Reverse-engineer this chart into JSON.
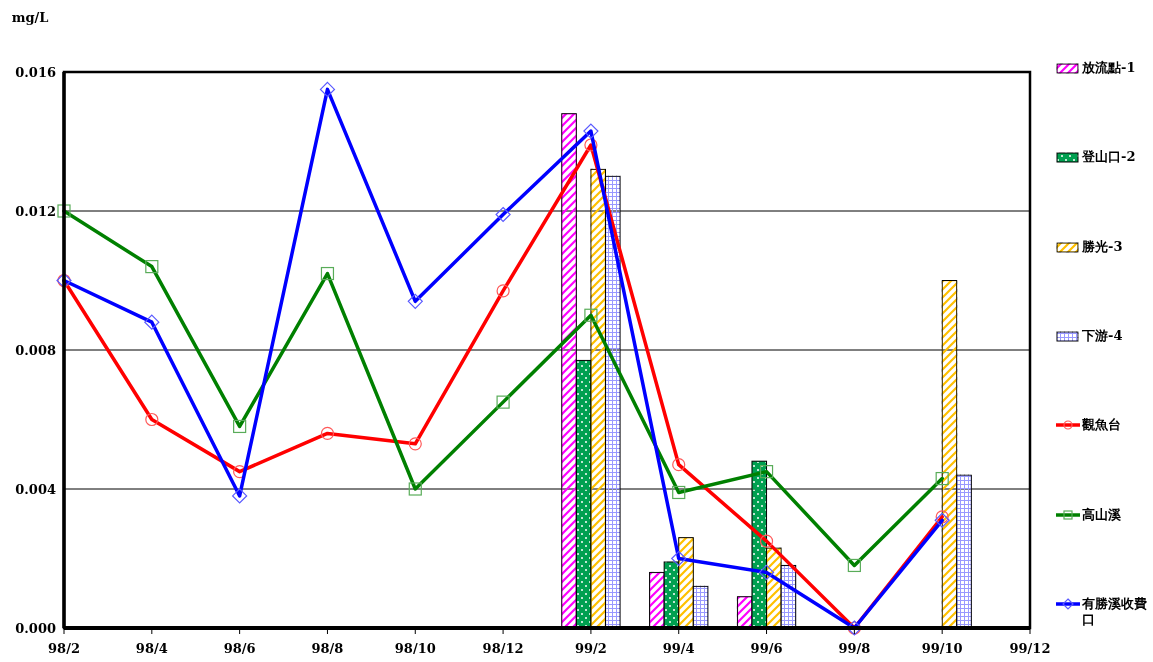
{
  "chart_data": {
    "type": "bar",
    "ylabel": "mg/L",
    "categories": [
      "98/2",
      "98/4",
      "98/6",
      "98/8",
      "98/10",
      "98/12",
      "99/2",
      "99/4",
      "99/6",
      "99/8",
      "99/10",
      "99/12"
    ],
    "ylim": [
      0,
      0.016
    ],
    "yticks": [
      {
        "value": 0,
        "label": "0.000"
      },
      0.004,
      0.008,
      0.012,
      0.016
    ],
    "grid": "y",
    "legend": "right",
    "series": [
      {
        "name": "放流點-1",
        "color": "#ff00ff",
        "values": [
          null,
          null,
          null,
          null,
          null,
          null,
          0.0148,
          0.0016,
          0.0009,
          null,
          null,
          null
        ]
      },
      {
        "name": "登山口-2",
        "color": "#00a050",
        "values": [
          null,
          null,
          null,
          null,
          null,
          null,
          0.0077,
          0.0019,
          0.0048,
          null,
          null,
          null
        ]
      },
      {
        "name": "勝光-3",
        "color": "#ffc000",
        "values": [
          null,
          null,
          null,
          null,
          null,
          null,
          0.0132,
          0.0026,
          0.0023,
          null,
          0.01,
          null
        ]
      },
      {
        "name": "下游-4",
        "color": "#9999ff",
        "values": [
          null,
          null,
          null,
          null,
          null,
          null,
          0.013,
          0.0012,
          0.0018,
          null,
          0.0044,
          null
        ]
      },
      {
        "name": "觀魚台",
        "type": "line",
        "color": "#ff0000",
        "marker": "circle",
        "values": [
          0.01,
          0.006,
          0.0045,
          0.0056,
          0.0053,
          0.0097,
          0.0139,
          0.0047,
          0.0025,
          0,
          0.0032,
          null
        ]
      },
      {
        "name": "高山溪",
        "type": "line",
        "color": "#008000",
        "marker": "square",
        "values": [
          0.012,
          0.0104,
          0.0058,
          0.0102,
          0.004,
          0.0065,
          0.009,
          0.0039,
          0.0045,
          0.0018,
          0.0043,
          null
        ]
      },
      {
        "name": "有勝溪收費口",
        "type": "line",
        "color": "#0000ff",
        "marker": "diamond",
        "values": [
          0.01,
          0.0088,
          0.0038,
          0.0155,
          0.0094,
          0.0119,
          0.0143,
          0.002,
          0.0016,
          0,
          0.0031,
          null
        ]
      }
    ]
  }
}
